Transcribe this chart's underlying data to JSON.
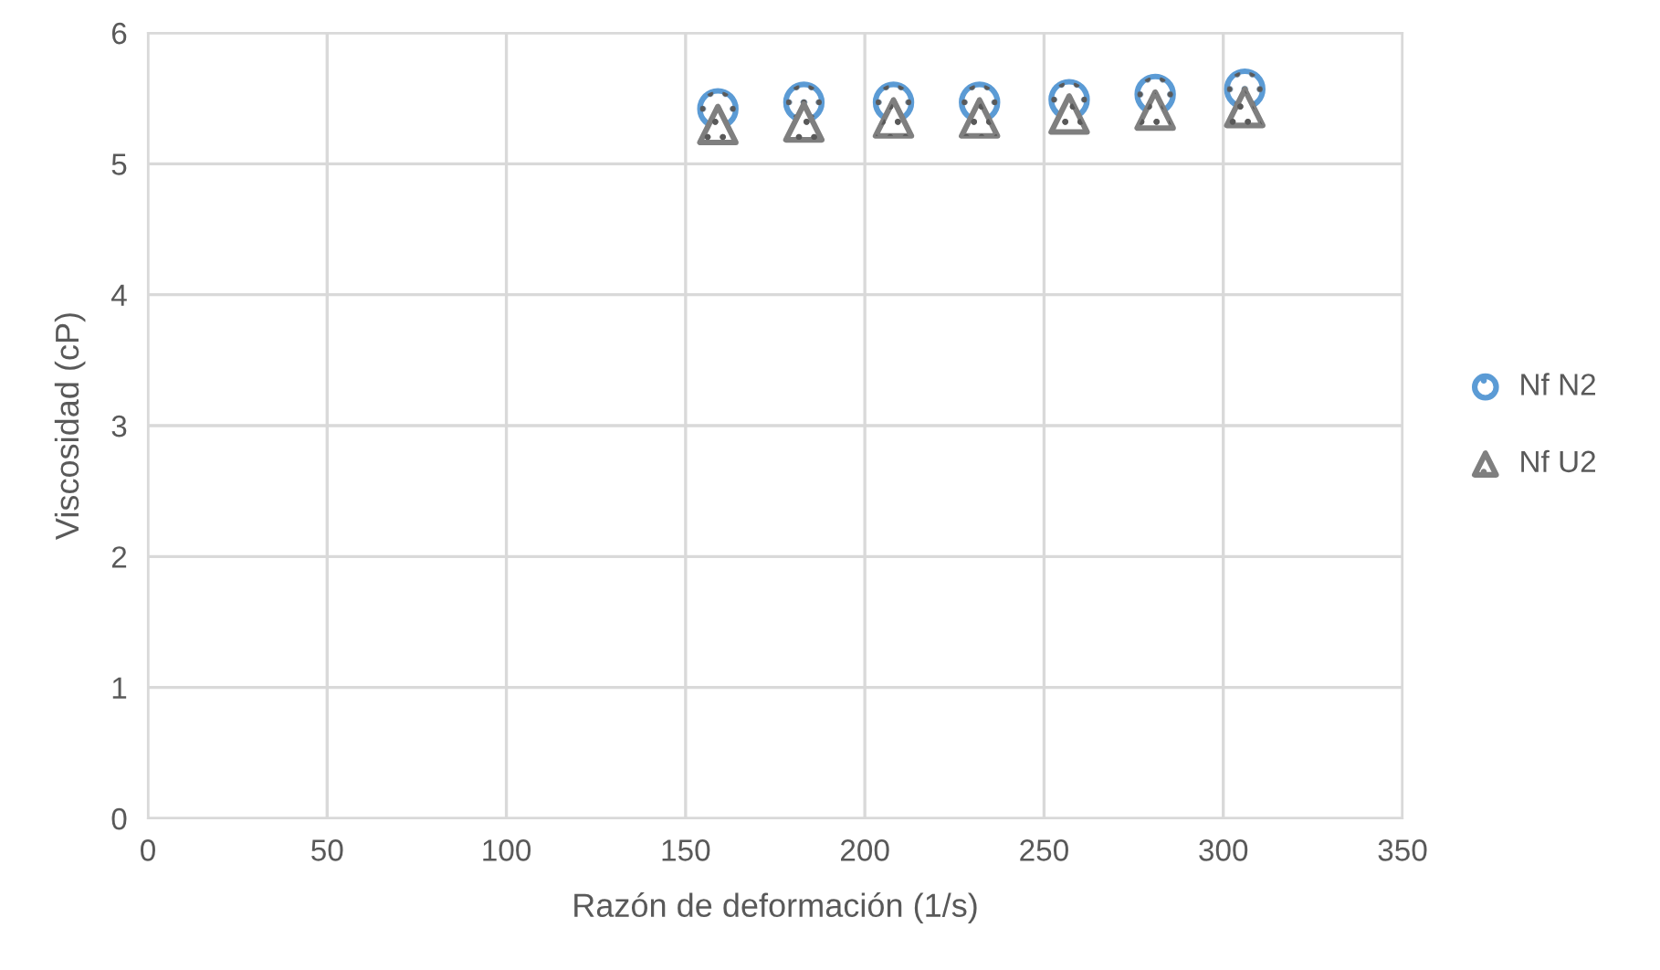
{
  "chart_data": {
    "type": "scatter",
    "xlabel": "Razón de deformación (1/s)",
    "ylabel": "Viscosidad (cP)",
    "xlim": [
      0,
      350
    ],
    "xticks": [
      0,
      50,
      100,
      150,
      200,
      250,
      300,
      350
    ],
    "ylim": [
      0,
      6
    ],
    "yticks": [
      0,
      1,
      2,
      3,
      4,
      5,
      6
    ],
    "grid": true,
    "legend": "right",
    "series": [
      {
        "name": "Nf N2",
        "color": "#5b9bd5",
        "marker": "circle",
        "x": [
          159,
          183,
          208,
          232,
          257,
          281,
          306
        ],
        "values": [
          5.42,
          5.47,
          5.47,
          5.47,
          5.49,
          5.53,
          5.57
        ]
      },
      {
        "name": "Nf U2",
        "color": "#7f7f7f",
        "marker": "triangle",
        "x": [
          159,
          183,
          208,
          232,
          257,
          281,
          306
        ],
        "values": [
          5.3,
          5.32,
          5.35,
          5.35,
          5.38,
          5.41,
          5.43
        ]
      }
    ]
  }
}
